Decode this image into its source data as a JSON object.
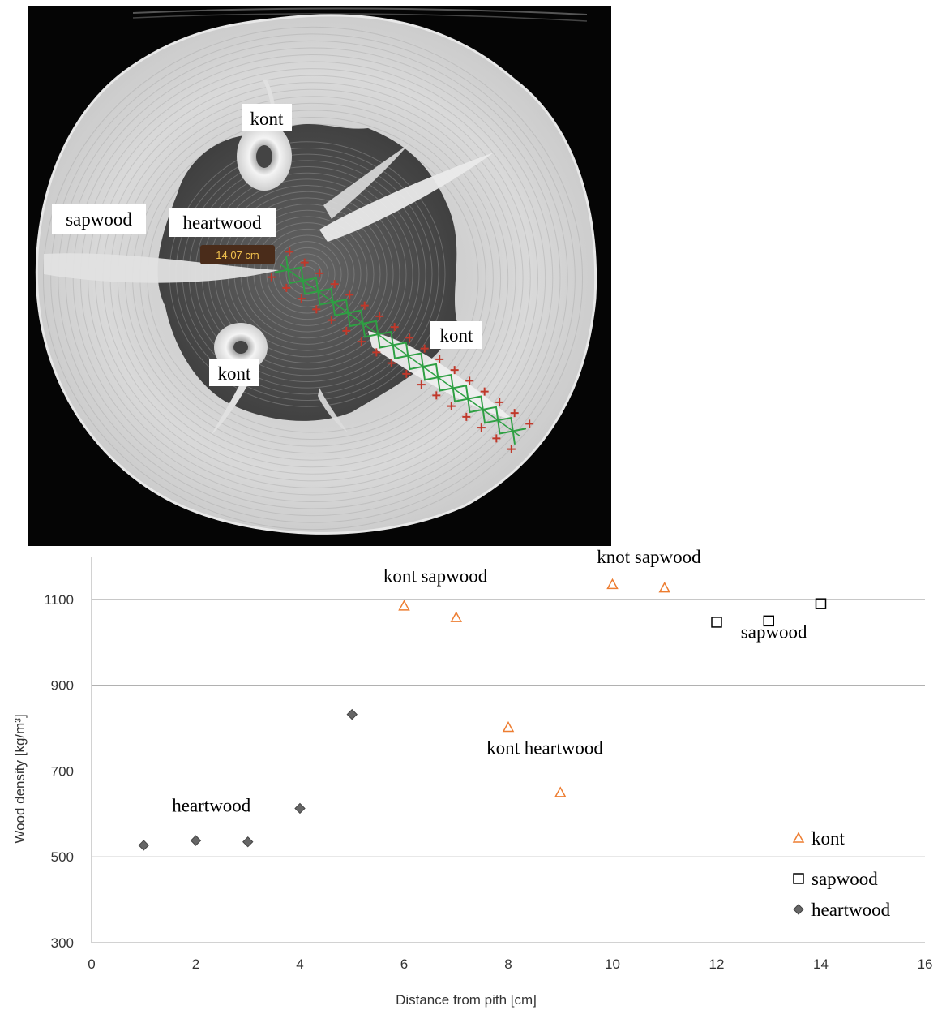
{
  "image": {
    "measure_label": "14.07 cm",
    "labels": {
      "kont_top": "kont",
      "sapwood": "sapwood",
      "heartwood": "heartwood",
      "kont_left": "kont",
      "kont_right": "kont"
    }
  },
  "chart_data": {
    "type": "scatter",
    "xlabel": "Distance from pith [cm]",
    "ylabel": "Wood density [kg/m³]",
    "xlim": [
      0,
      16
    ],
    "ylim": [
      300,
      1200
    ],
    "xticks": [
      "0",
      "2",
      "4",
      "6",
      "8",
      "10",
      "12",
      "14",
      "16"
    ],
    "yticks": [
      "300",
      "500",
      "700",
      "900",
      "1100"
    ],
    "grid": true,
    "legend_position": "bottom-right",
    "series": [
      {
        "name": "kont",
        "marker": "triangle-open",
        "color": "#ed7d31",
        "points": [
          [
            6,
            1085
          ],
          [
            7,
            1058
          ],
          [
            8,
            802
          ],
          [
            9,
            650
          ],
          [
            10,
            1135
          ],
          [
            11,
            1127
          ]
        ]
      },
      {
        "name": "sapwood",
        "marker": "square-open",
        "color": "#000000",
        "points": [
          [
            12,
            1047
          ],
          [
            13,
            1050
          ],
          [
            14,
            1090
          ]
        ]
      },
      {
        "name": "heartwood",
        "marker": "diamond-filled",
        "color": "#666666",
        "points": [
          [
            1,
            527
          ],
          [
            2,
            538
          ],
          [
            3,
            535
          ],
          [
            4,
            613
          ],
          [
            5,
            832
          ]
        ]
      }
    ],
    "annotations": [
      {
        "text": "kont sapwood",
        "x": 6.6,
        "y": 1140
      },
      {
        "text": "knot sapwood",
        "x": 10.7,
        "y": 1185
      },
      {
        "text": "sapwood",
        "x": 13.1,
        "y": 1010
      },
      {
        "text": "kont heartwood",
        "x": 8.7,
        "y": 740
      },
      {
        "text": "heartwood",
        "x": 2.3,
        "y": 605
      }
    ]
  }
}
